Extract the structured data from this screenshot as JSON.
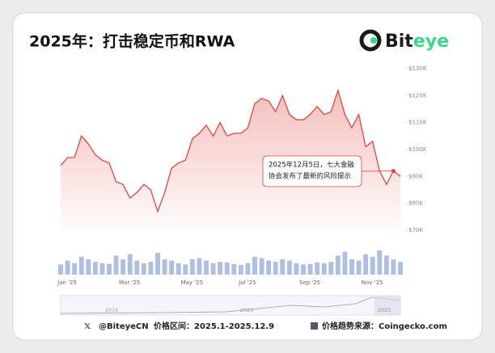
{
  "chart_data": {
    "type": "line",
    "title": "2025年：打击稳定币和RWA",
    "logo": [
      "Bit",
      "eye"
    ],
    "categories": [
      "Jan '25",
      null,
      null,
      null,
      null,
      null,
      null,
      null,
      null,
      "Mar '25",
      null,
      null,
      null,
      null,
      null,
      null,
      null,
      null,
      "May '25",
      null,
      null,
      null,
      null,
      null,
      null,
      null,
      "Jul '25",
      null,
      null,
      null,
      null,
      null,
      null,
      null,
      null,
      "Sep '25",
      null,
      null,
      null,
      null,
      null,
      null,
      null,
      null,
      "Nov '25",
      null,
      null,
      null,
      null,
      null
    ],
    "series": [
      {
        "color": "#e0473f",
        "values": [
          94000,
          97000,
          97000,
          105000,
          102000,
          98000,
          96000,
          95000,
          88000,
          87000,
          82000,
          84000,
          87000,
          85000,
          77000,
          84000,
          93000,
          95000,
          96000,
          104000,
          106000,
          109000,
          105000,
          110000,
          105000,
          106000,
          106000,
          108000,
          117000,
          119000,
          118000,
          114000,
          120000,
          113000,
          111000,
          111000,
          113000,
          116000,
          113000,
          114000,
          122000,
          113000,
          108000,
          113000,
          101000,
          103000,
          92000,
          87000,
          92000,
          90000
        ]
      }
    ],
    "volume": [
      40,
      55,
      45,
      70,
      60,
      50,
      45,
      42,
      75,
      60,
      80,
      55,
      45,
      50,
      85,
      60,
      55,
      45,
      40,
      60,
      65,
      55,
      45,
      50,
      48,
      42,
      38,
      45,
      70,
      65,
      55,
      50,
      60,
      55,
      45,
      40,
      42,
      48,
      45,
      50,
      75,
      90,
      60,
      55,
      80,
      70,
      95,
      75,
      60,
      50
    ],
    "ylim": [
      70000,
      130000
    ],
    "yticks": [
      {
        "value": 70000,
        "label": "$70K"
      },
      {
        "value": 80000,
        "label": "$80K"
      },
      {
        "value": 90000,
        "label": "$90K"
      },
      {
        "value": 100000,
        "label": "$100K"
      },
      {
        "value": 110000,
        "label": "$110K"
      },
      {
        "value": 120000,
        "label": "$120K"
      },
      {
        "value": 130000,
        "label": "$130K"
      }
    ],
    "annotation": {
      "lines": [
        "2025年12月5日，七大金融",
        "协会发布了最新的风险提示"
      ],
      "index": 48
    },
    "navigator_labels": [
      "2015",
      "2020",
      "2025"
    ],
    "footer": {
      "handle": "@BiteyeCN",
      "range": "价格区间：2025.1-2025.12.9",
      "source": "价格趋势来源：Coingecko.com"
    }
  }
}
